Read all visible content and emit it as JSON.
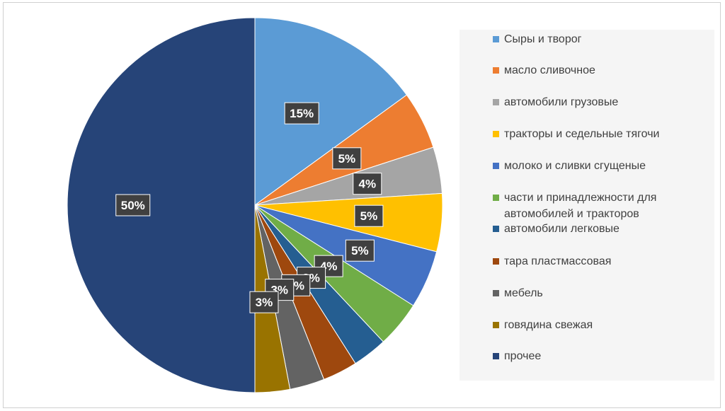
{
  "chart_data": {
    "type": "pie",
    "slices": [
      {
        "name": "Сыры и творог",
        "value": 15,
        "label": "15%",
        "color": "#5B9BD5"
      },
      {
        "name": "масло сливочное",
        "value": 5,
        "label": "5%",
        "color": "#ED7D31"
      },
      {
        "name": "автомобили грузовые",
        "value": 4,
        "label": "4%",
        "color": "#A5A5A5"
      },
      {
        "name": "тракторы и седельные тягочи",
        "value": 5,
        "label": "5%",
        "color": "#FFC000"
      },
      {
        "name": "молоко и сливки сгущеные",
        "value": 5,
        "label": "5%",
        "color": "#4472C4"
      },
      {
        "name": "части и принадлежности для автомобилей и тракторов",
        "value": 4,
        "label": "4%",
        "color": "#70AD47"
      },
      {
        "name": "автомобили легковые",
        "value": 3,
        "label": "3%",
        "color": "#255E91"
      },
      {
        "name": "тара пластмассовая",
        "value": 3,
        "label": "3%",
        "color": "#9E480E"
      },
      {
        "name": "мебель",
        "value": 3,
        "label": "3%",
        "color": "#636363"
      },
      {
        "name": "говядина свежая",
        "value": 3,
        "label": "3%",
        "color": "#997300"
      },
      {
        "name": "прочее",
        "value": 50,
        "label": "50%",
        "color": "#264478"
      }
    ],
    "legend_position": "right",
    "data_label_style": "dark callout boxes with white bold text"
  }
}
